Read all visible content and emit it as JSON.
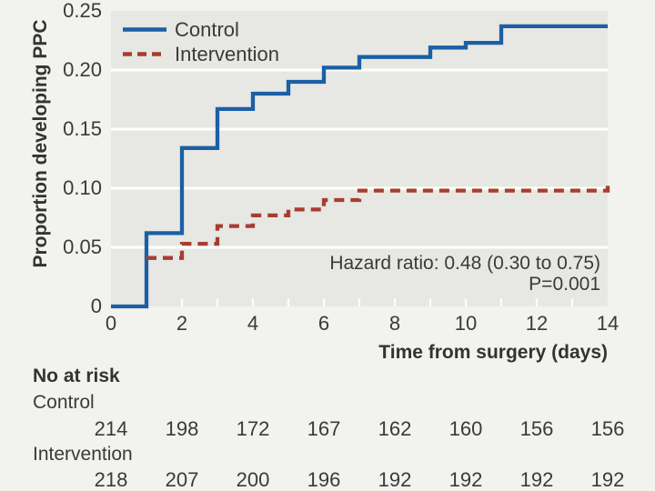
{
  "figure": {
    "background_color": "#f2f2ee",
    "panel_color": "#e7e7e3",
    "gridline_color": "#ffffff"
  },
  "chart_data": {
    "type": "line",
    "subtype": "step-cumulative-incidence",
    "xlabel": "Time from surgery (days)",
    "ylabel": "Proportion developing PPC",
    "xlim": [
      0,
      14
    ],
    "ylim": [
      0,
      0.25
    ],
    "grid": "horizontal-white",
    "legend_position": "top-left-inside",
    "x_ticks": [
      0,
      2,
      4,
      6,
      8,
      10,
      12,
      14
    ],
    "x_tick_labels": [
      "0",
      "2",
      "4",
      "6",
      "8",
      "10",
      "12",
      "14"
    ],
    "y_ticks": [
      0.05,
      0.1,
      0.15,
      0.2
    ],
    "y_tick_labels_top_to_bottom": [
      "0.25",
      "0.20",
      "0.15",
      "0.10",
      "0.05",
      "0"
    ],
    "series": [
      {
        "name": "Control",
        "color": "#1b5fa5",
        "style": "solid",
        "step": "after",
        "points": [
          [
            0,
            0
          ],
          [
            1,
            0.062
          ],
          [
            2,
            0.134
          ],
          [
            3,
            0.167
          ],
          [
            4,
            0.18
          ],
          [
            5,
            0.19
          ],
          [
            6,
            0.202
          ],
          [
            7,
            0.211
          ],
          [
            9,
            0.219
          ],
          [
            10,
            0.223
          ],
          [
            11,
            0.237
          ],
          [
            14,
            0.237
          ]
        ]
      },
      {
        "name": "Intervention",
        "color": "#a63e2f",
        "style": "dashed",
        "step": "after",
        "points": [
          [
            1,
            0.041
          ],
          [
            2,
            0.053
          ],
          [
            3,
            0.068
          ],
          [
            4,
            0.077
          ],
          [
            5,
            0.082
          ],
          [
            6,
            0.09
          ],
          [
            7,
            0.098
          ],
          [
            14,
            0.102
          ]
        ]
      }
    ],
    "annotations": [
      "Hazard ratio: 0.48 (0.30 to 0.75)",
      "P=0.001"
    ]
  },
  "risk_table": {
    "title": "No at risk",
    "time_points": [
      0,
      2,
      4,
      6,
      8,
      10,
      12,
      14
    ],
    "rows": [
      {
        "label": "Control",
        "values": [
          "214",
          "198",
          "172",
          "167",
          "162",
          "160",
          "156",
          "156"
        ]
      },
      {
        "label": "Intervention",
        "values": [
          "218",
          "207",
          "200",
          "196",
          "192",
          "192",
          "192",
          "192"
        ]
      }
    ]
  }
}
